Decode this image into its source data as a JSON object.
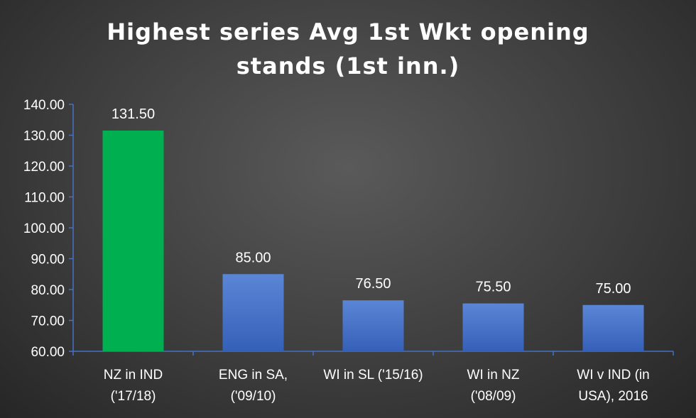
{
  "chart_data": {
    "type": "bar",
    "title_lines": [
      "Highest series Avg 1st Wkt opening",
      "stands (1st inn.)"
    ],
    "categories": [
      [
        "NZ in IND",
        "('17/18)"
      ],
      [
        "ENG in SA,",
        "('09/10)"
      ],
      [
        "WI in SL ('15/16)"
      ],
      [
        "WI in NZ",
        "('08/09)"
      ],
      [
        "WI v IND (in",
        "USA), 2016"
      ]
    ],
    "values": [
      131.5,
      85.0,
      76.5,
      75.5,
      75.0
    ],
    "value_labels": [
      "131.50",
      "85.00",
      "76.50",
      "75.50",
      "75.00"
    ],
    "bar_colors": [
      "#00b050",
      "#4472c4",
      "#4472c4",
      "#4472c4",
      "#4472c4"
    ],
    "y_ticks": [
      "60.00",
      "70.00",
      "80.00",
      "90.00",
      "100.00",
      "110.00",
      "120.00",
      "130.00",
      "140.00"
    ],
    "ylim": [
      60,
      140
    ],
    "axis_color": "#4472c4",
    "text_color": "#ffffff",
    "grid": false
  }
}
